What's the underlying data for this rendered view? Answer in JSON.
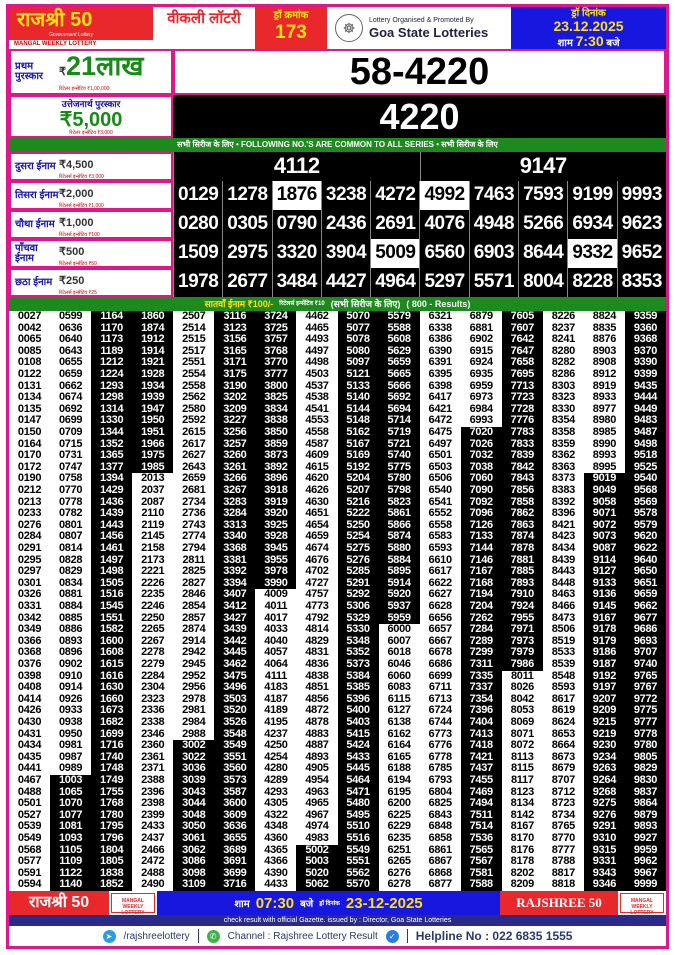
{
  "header": {
    "brand": "राजश्री 50",
    "brand_sub": "Government Lottery",
    "brand_strip": "MANGAL WEEKLY LOTTERY",
    "weekly": "वीकली लॉटरी",
    "draw_label": "ड्रॉ क्रमांक",
    "draw_no": "173",
    "organiser": "Lottery Organised & Promoted By",
    "organiser_name": "Goa State Lotteries",
    "date_label": "ड्रॉ दिनांक",
    "date": "23.12.2025",
    "time_prefix": "शाम",
    "time": "7:30",
    "time_suffix": "बजे"
  },
  "first_prize": {
    "title": "प्रथम पुरस्कार",
    "amount": "21लाख",
    "currency": "₹",
    "retailer": "रिटेलर इन्सेंटिव ₹1,00,000",
    "number": "58-4220"
  },
  "consolation": {
    "title": "उत्तेजनार्थ पुरस्कार",
    "amount": "₹5,000",
    "retailer": "रिटेलर इन्सेंटिव ₹3,000",
    "number": "4220"
  },
  "common_banner": "सभी सिरीज के लिए  •  FOLLOWING NO.'S ARE COMMON TO ALL SERIES • सभी सिरीज के लिए",
  "prizes": [
    {
      "title": "दुसरा ईनाम",
      "amount": "4,500",
      "retailer": "रिटेलर्स इन्सेंटिव ₹3,000",
      "numbers": [
        "4112",
        "9147"
      ]
    },
    {
      "title": "तिसरा ईनाम",
      "amount": "2,000",
      "retailer": "रिटेलर्स इन्सेंटिव ₹1,000",
      "numbers": [
        "0129",
        "1278",
        "1876",
        "3238",
        "4272",
        "4992",
        "7463",
        "7593",
        "9199",
        "9993"
      ]
    },
    {
      "title": "चौथा ईनाम",
      "amount": "1,000",
      "retailer": "रिटेलर्स इन्सेंटिव ₹100",
      "numbers": [
        "0280",
        "0305",
        "0790",
        "2436",
        "2691",
        "4076",
        "4948",
        "5266",
        "6934",
        "9623"
      ]
    },
    {
      "title": "पाँचवा ईनाम",
      "amount": "500",
      "retailer": "रिटेलर्स इन्सेंटिव ₹50",
      "numbers": [
        "1509",
        "2975",
        "3320",
        "3904",
        "5009",
        "6560",
        "6903",
        "8644",
        "9332",
        "9652"
      ]
    },
    {
      "title": "छठा ईनाम",
      "amount": "250",
      "retailer": "रिटेलर्स इन्सेंटिव ₹25",
      "numbers": [
        "1978",
        "2677",
        "3484",
        "4427",
        "4964",
        "5297",
        "5571",
        "8004",
        "8228",
        "8353"
      ]
    }
  ],
  "highlighted": [
    "1876",
    "4992",
    "5009",
    "9332"
  ],
  "seventh": {
    "title": "सातवाँ ईनाम ₹100/-",
    "retailer": "रिटेलर्स इन्सेंटिव ₹10",
    "note": "(सभी सिरीज के लिए)",
    "count": "( 800 - Results)"
  },
  "results_columns": [
    [
      "0027",
      "0042",
      "0065",
      "0085",
      "0108",
      "0122",
      "0131",
      "0134",
      "0135",
      "0147",
      "0150",
      "0164",
      "0170",
      "0172",
      "0190",
      "0212",
      "0213",
      "0233",
      "0276",
      "0284",
      "0291",
      "0295",
      "0297",
      "0301",
      "0326",
      "0331",
      "0342",
      "0349",
      "0366",
      "0368",
      "0376",
      "0398",
      "0408",
      "0414",
      "0426",
      "0430",
      "0431",
      "0434",
      "0435",
      "0441",
      "0467",
      "0488",
      "0501",
      "0527",
      "0539",
      "0549",
      "0568",
      "0577",
      "0591",
      "0594"
    ],
    [
      "0599",
      "0636",
      "0640",
      "0643",
      "0655",
      "0659",
      "0662",
      "0674",
      "0692",
      "0699",
      "0709",
      "0715",
      "0731",
      "0747",
      "0758",
      "0770",
      "0778",
      "0782",
      "0801",
      "0807",
      "0814",
      "0828",
      "0829",
      "0834",
      "0881",
      "0884",
      "0885",
      "0886",
      "0893",
      "0896",
      "0902",
      "0910",
      "0914",
      "0926",
      "0933",
      "0938",
      "0950",
      "0981",
      "0987",
      "0989",
      "1003",
      "1065",
      "1070",
      "1077",
      "1081",
      "1093",
      "1105",
      "1109",
      "1122",
      "1140"
    ],
    [
      "1164",
      "1170",
      "1173",
      "1189",
      "1212",
      "1224",
      "1293",
      "1298",
      "1314",
      "1330",
      "1344",
      "1352",
      "1365",
      "1377",
      "1394",
      "1429",
      "1436",
      "1439",
      "1443",
      "1456",
      "1461",
      "1497",
      "1498",
      "1505",
      "1516",
      "1545",
      "1551",
      "1582",
      "1600",
      "1608",
      "1615",
      "1616",
      "1630",
      "1660",
      "1673",
      "1682",
      "1699",
      "1716",
      "1740",
      "1748",
      "1749",
      "1755",
      "1768",
      "1780",
      "1795",
      "1796",
      "1804",
      "1805",
      "1838",
      "1852"
    ],
    [
      "1860",
      "1874",
      "1912",
      "1914",
      "1921",
      "1928",
      "1934",
      "1939",
      "1947",
      "1950",
      "1951",
      "1966",
      "1975",
      "1985",
      "2013",
      "2037",
      "2087",
      "2110",
      "2119",
      "2145",
      "2158",
      "2173",
      "2221",
      "2226",
      "2235",
      "2246",
      "2250",
      "2265",
      "2267",
      "2278",
      "2279",
      "2284",
      "2304",
      "2323",
      "2336",
      "2338",
      "2346",
      "2360",
      "2361",
      "2371",
      "2388",
      "2396",
      "2398",
      "2399",
      "2433",
      "2437",
      "2466",
      "2472",
      "2488",
      "2490"
    ],
    [
      "2507",
      "2514",
      "2515",
      "2517",
      "2551",
      "2554",
      "2558",
      "2562",
      "2580",
      "2592",
      "2615",
      "2617",
      "2627",
      "2643",
      "2659",
      "2681",
      "2734",
      "2736",
      "2743",
      "2774",
      "2794",
      "2811",
      "2825",
      "2827",
      "2846",
      "2854",
      "2857",
      "2874",
      "2914",
      "2942",
      "2945",
      "2952",
      "2956",
      "2978",
      "2981",
      "2984",
      "2988",
      "3002",
      "3022",
      "3036",
      "3039",
      "3043",
      "3044",
      "3048",
      "3050",
      "3061",
      "3062",
      "3086",
      "3098",
      "3109"
    ],
    [
      "3116",
      "3123",
      "3156",
      "3165",
      "3171",
      "3175",
      "3190",
      "3202",
      "3209",
      "3227",
      "3256",
      "3257",
      "3260",
      "3261",
      "3266",
      "3267",
      "3283",
      "3284",
      "3313",
      "3340",
      "3368",
      "3381",
      "3392",
      "3394",
      "3407",
      "3412",
      "3427",
      "3439",
      "3442",
      "3445",
      "3462",
      "3475",
      "3496",
      "3503",
      "3520",
      "3526",
      "3548",
      "3549",
      "3551",
      "3560",
      "3573",
      "3587",
      "3600",
      "3609",
      "3636",
      "3655",
      "3689",
      "3691",
      "3699",
      "3716"
    ],
    [
      "3724",
      "3725",
      "3757",
      "3768",
      "3770",
      "3777",
      "3800",
      "3825",
      "3834",
      "3838",
      "3850",
      "3859",
      "3873",
      "3892",
      "3896",
      "3918",
      "3919",
      "3920",
      "3925",
      "3928",
      "3945",
      "3955",
      "3978",
      "3990",
      "4009",
      "4011",
      "4017",
      "4033",
      "4040",
      "4057",
      "4064",
      "4111",
      "4183",
      "4187",
      "4189",
      "4195",
      "4237",
      "4250",
      "4254",
      "4280",
      "4289",
      "4293",
      "4305",
      "4322",
      "4348",
      "4360",
      "4365",
      "4366",
      "4390",
      "4433"
    ],
    [
      "4462",
      "4465",
      "4493",
      "4497",
      "4498",
      "4503",
      "4537",
      "4538",
      "4541",
      "4553",
      "4558",
      "4587",
      "4609",
      "4615",
      "4620",
      "4626",
      "4630",
      "4651",
      "4654",
      "4659",
      "4674",
      "4676",
      "4702",
      "4727",
      "4757",
      "4773",
      "4792",
      "4814",
      "4829",
      "4831",
      "4836",
      "4838",
      "4851",
      "4856",
      "4872",
      "4878",
      "4883",
      "4887",
      "4893",
      "4905",
      "4954",
      "4963",
      "4965",
      "4967",
      "4974",
      "4983",
      "5002",
      "5003",
      "5020",
      "5062"
    ],
    [
      "5070",
      "5077",
      "5078",
      "5080",
      "5097",
      "5121",
      "5133",
      "5140",
      "5144",
      "5148",
      "5162",
      "5167",
      "5169",
      "5192",
      "5204",
      "5207",
      "5216",
      "5222",
      "5250",
      "5254",
      "5275",
      "5276",
      "5285",
      "5291",
      "5292",
      "5306",
      "5329",
      "5330",
      "5348",
      "5352",
      "5373",
      "5384",
      "5385",
      "5396",
      "5400",
      "5403",
      "5415",
      "5424",
      "5433",
      "5445",
      "5464",
      "5471",
      "5480",
      "5495",
      "5510",
      "5516",
      "5549",
      "5551",
      "5562",
      "5570"
    ],
    [
      "5579",
      "5588",
      "5608",
      "5629",
      "5659",
      "5665",
      "5666",
      "5692",
      "5694",
      "5714",
      "5719",
      "5721",
      "5740",
      "5775",
      "5780",
      "5798",
      "5823",
      "5861",
      "5866",
      "5874",
      "5880",
      "5884",
      "5895",
      "5914",
      "5920",
      "5937",
      "5959",
      "6000",
      "6007",
      "6018",
      "6046",
      "6060",
      "6083",
      "6115",
      "6127",
      "6138",
      "6162",
      "6164",
      "6165",
      "6188",
      "6194",
      "6195",
      "6200",
      "6225",
      "6229",
      "6235",
      "6251",
      "6265",
      "6276",
      "6278"
    ],
    [
      "6321",
      "6338",
      "6386",
      "6390",
      "6391",
      "6395",
      "6398",
      "6417",
      "6421",
      "6472",
      "6475",
      "6497",
      "6501",
      "6503",
      "6506",
      "6540",
      "6541",
      "6552",
      "6558",
      "6583",
      "6593",
      "6610",
      "6617",
      "6622",
      "6627",
      "6628",
      "6656",
      "6657",
      "6667",
      "6678",
      "6686",
      "6699",
      "6711",
      "6713",
      "6724",
      "6744",
      "6773",
      "6776",
      "6778",
      "6785",
      "6793",
      "6804",
      "6825",
      "6843",
      "6848",
      "6858",
      "6861",
      "6867",
      "6868",
      "6877"
    ],
    [
      "6879",
      "6881",
      "6902",
      "6915",
      "6924",
      "6935",
      "6959",
      "6973",
      "6984",
      "6993",
      "7020",
      "7026",
      "7032",
      "7038",
      "7060",
      "7090",
      "7092",
      "7096",
      "7126",
      "7133",
      "7144",
      "7146",
      "7167",
      "7168",
      "7194",
      "7204",
      "7262",
      "7284",
      "7289",
      "7299",
      "7311",
      "7335",
      "7337",
      "7354",
      "7396",
      "7404",
      "7413",
      "7418",
      "7421",
      "7437",
      "7455",
      "7469",
      "7494",
      "7511",
      "7514",
      "7536",
      "7565",
      "7567",
      "7581",
      "7588"
    ],
    [
      "7605",
      "7607",
      "7642",
      "7647",
      "7658",
      "7695",
      "7713",
      "7723",
      "7728",
      "7776",
      "7783",
      "7833",
      "7839",
      "7842",
      "7843",
      "7856",
      "7858",
      "7862",
      "7863",
      "7874",
      "7878",
      "7881",
      "7885",
      "7893",
      "7910",
      "7924",
      "7955",
      "7971",
      "7973",
      "7979",
      "7986",
      "8011",
      "8026",
      "8042",
      "8053",
      "8069",
      "8071",
      "8072",
      "8113",
      "8115",
      "8117",
      "8123",
      "8134",
      "8142",
      "8167",
      "8170",
      "8176",
      "8178",
      "8202",
      "8209"
    ],
    [
      "8226",
      "8237",
      "8241",
      "8280",
      "8282",
      "8286",
      "8303",
      "8323",
      "8330",
      "8354",
      "8358",
      "8359",
      "8362",
      "8363",
      "8373",
      "8383",
      "8392",
      "8396",
      "8421",
      "8423",
      "8434",
      "8439",
      "8443",
      "8448",
      "8463",
      "8466",
      "8473",
      "8506",
      "8519",
      "8533",
      "8539",
      "8548",
      "8593",
      "8617",
      "8619",
      "8624",
      "8653",
      "8664",
      "8673",
      "8679",
      "8707",
      "8712",
      "8723",
      "8734",
      "8765",
      "8770",
      "8777",
      "8788",
      "8817",
      "8818"
    ],
    [
      "8824",
      "8835",
      "8876",
      "8903",
      "8908",
      "8912",
      "8919",
      "8933",
      "8977",
      "8980",
      "8985",
      "8990",
      "8993",
      "8995",
      "9019",
      "9049",
      "9058",
      "9071",
      "9072",
      "9073",
      "9087",
      "9114",
      "9127",
      "9133",
      "9136",
      "9145",
      "9167",
      "9178",
      "9179",
      "9186",
      "9187",
      "9192",
      "9197",
      "9207",
      "9209",
      "9215",
      "9219",
      "9230",
      "9234",
      "9263",
      "9264",
      "9268",
      "9275",
      "9276",
      "9291",
      "9310",
      "9315",
      "9331",
      "9343",
      "9346"
    ],
    [
      "9359",
      "9360",
      "9368",
      "9370",
      "9390",
      "9399",
      "9435",
      "9444",
      "9449",
      "9483",
      "9487",
      "9498",
      "9518",
      "9525",
      "9540",
      "9568",
      "9569",
      "9578",
      "9579",
      "9620",
      "9622",
      "9640",
      "9650",
      "9651",
      "9659",
      "9662",
      "9677",
      "9686",
      "9693",
      "9707",
      "9740",
      "9765",
      "9767",
      "9772",
      "9775",
      "9777",
      "9778",
      "9780",
      "9805",
      "9829",
      "9830",
      "9837",
      "9864",
      "9879",
      "9893",
      "9927",
      "9959",
      "9962",
      "9967",
      "9999"
    ]
  ],
  "footer": {
    "brand_left": "राजश्री 50",
    "mangal": "MANGAL WEEKLY LOTTERY",
    "time_prefix": "शाम",
    "time": "07:30",
    "time_suffix": "बजे",
    "date_label": "ड्रॉ दिनांक",
    "date": "23-12-2025",
    "brand_right": "RAJSHREE 50",
    "gazette": "check result with official Gazette. issued by : Director, Goa State Lotteries",
    "telegram": "/rajshreelottery",
    "channel": "Channel : Rajshree Lottery Result",
    "helpline": "Helpline No : 022 6835 1555"
  },
  "colors": {
    "frame": "#e0178a",
    "red": "#e8282b",
    "yellow": "#ffe014",
    "blue": "#1717e0",
    "green": "#1c8a1c",
    "navy": "#2a2a8a"
  },
  "icons": {
    "seal": "goa-state-emblem",
    "telegram": "telegram-icon",
    "whatsapp": "whatsapp-icon",
    "verified": "verified-badge-icon"
  }
}
